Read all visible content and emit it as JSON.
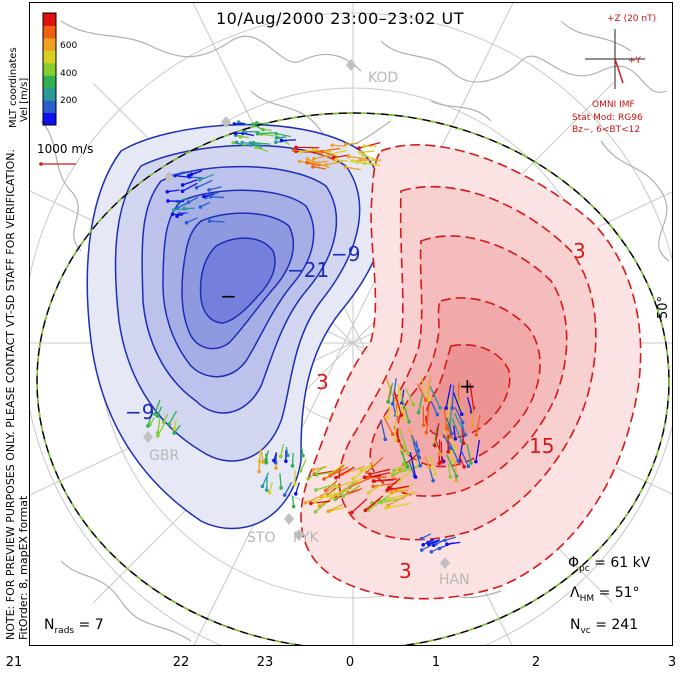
{
  "title": "10/Aug/2000 23:00–23:02 UT",
  "side_note": {
    "line1": "NOTE: FOR PREVIEW PURPOSES ONLY. PLEASE CONTACT VT-SD STAFF FOR VERIFICATION.",
    "line2": "FitOrder: 8, mapEX format"
  },
  "colorbar": {
    "title_line1": "MLT coordinates",
    "title_line2": "Vel [m/s]",
    "ticks": [
      "200",
      "400",
      "600"
    ],
    "colors": [
      "#1010ee",
      "#2a5fcf",
      "#2a9a9a",
      "#30b050",
      "#86cc30",
      "#d8d020",
      "#f0a020",
      "#f06010",
      "#e01010"
    ]
  },
  "scale_label": "1000 m/s",
  "imf": {
    "axis_label": "+Z (20 nT)",
    "y_label": "+Y",
    "model_line1": "OMNI IMF",
    "model_line2": "Stat Mod: RG96",
    "model_line3": "Bz−, 6<BT<12"
  },
  "latitude_label": "50°",
  "stations": [
    "KOD",
    "GBR",
    "STO",
    "PYK",
    "HAN"
  ],
  "contours": {
    "negative_labels": [
      "−9",
      "−21",
      "−9"
    ],
    "positive_labels": [
      "3",
      "3",
      "15",
      "3"
    ],
    "min_symbol": "−",
    "max_symbol": "+",
    "negative_color": "#1c2fb5",
    "positive_color": "#d81818"
  },
  "stats": {
    "phi_pc": "Φ",
    "phi_pc_sub": "pc",
    "phi_pc_value": " = 61 kV",
    "lambda_hm": "Λ",
    "lambda_hm_sub": "HM",
    "lambda_hm_value": " = 51°",
    "n_vc": "N",
    "n_vc_sub": "vc",
    "n_vc_value": " = 241",
    "n_rads": "N",
    "n_rads_sub": "rads",
    "n_rads_value": " = 7"
  },
  "mlt_axis": [
    "21",
    "22",
    "23",
    "0",
    "1",
    "2",
    "3"
  ]
}
